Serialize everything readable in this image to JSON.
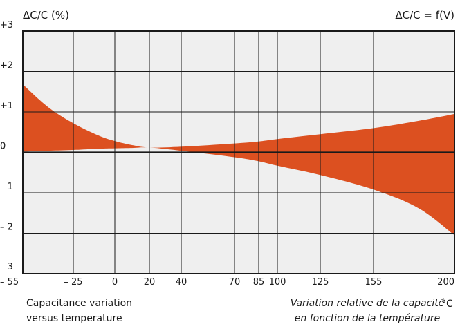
{
  "chart_data": {
    "type": "area",
    "ylabel": "ΔC/C (%)",
    "title": "ΔC/C = f(V)",
    "x_unit": "°C",
    "x_ticks": [
      -55,
      -25,
      0,
      20,
      40,
      70,
      85,
      100,
      125,
      155,
      200
    ],
    "x_tick_labels": [
      "– 55",
      "– 25",
      "0",
      "20",
      "40",
      "70",
      "85",
      "100",
      "125",
      "155",
      "200"
    ],
    "y_ticks": [
      3,
      2,
      1,
      0,
      -1,
      -2,
      -3
    ],
    "y_tick_labels": [
      "+3",
      "+2",
      "+1",
      "0",
      "– 1",
      "– 2",
      "– 3"
    ],
    "xlim": [
      -55,
      200
    ],
    "ylim": [
      -3,
      3
    ],
    "grid": true,
    "band": {
      "x": [
        -55,
        -40,
        -25,
        -10,
        0,
        10,
        20,
        40,
        70,
        85,
        100,
        125,
        155,
        180,
        200
      ],
      "upper": [
        1.68,
        1.12,
        0.72,
        0.42,
        0.28,
        0.18,
        0.12,
        0.14,
        0.22,
        0.27,
        0.33,
        0.45,
        0.6,
        0.78,
        0.95
      ],
      "lower": [
        0.02,
        0.04,
        0.06,
        0.09,
        0.1,
        0.11,
        0.12,
        0.04,
        -0.12,
        -0.22,
        -0.33,
        -0.56,
        -0.92,
        -1.38,
        -2.05
      ]
    },
    "colors": {
      "band": "#dc5020",
      "plot_bg": "#efefef",
      "grid": "#1a1a1a"
    }
  },
  "captions": {
    "left_line1": "Capacitance variation",
    "left_line2": "versus temperature",
    "right_line1": "Variation relative de la capacité",
    "right_line2": "en fonction de la température",
    "unit": "°C"
  }
}
